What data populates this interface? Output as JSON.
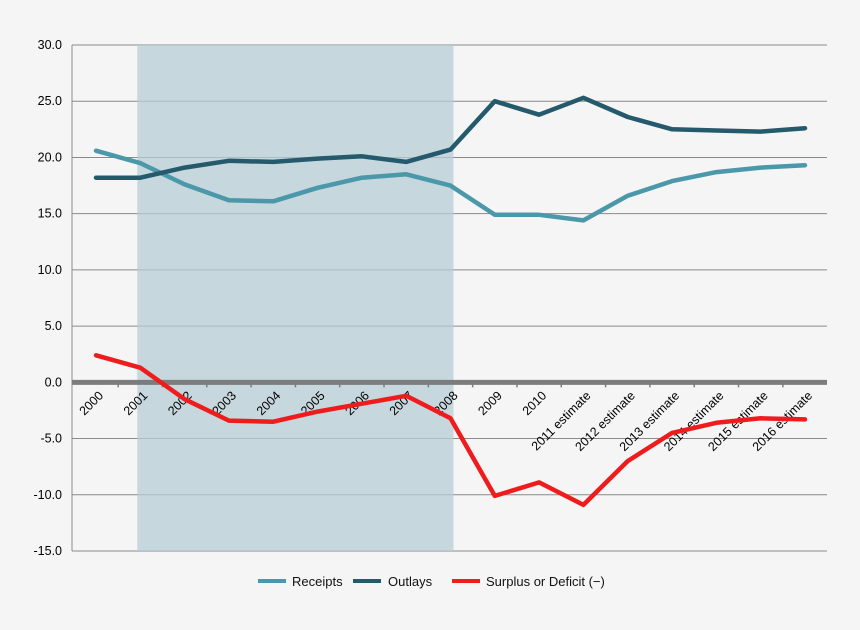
{
  "chart_data": {
    "type": "line",
    "title": "",
    "xlabel": "",
    "ylabel": "",
    "ylim": [
      -15,
      30
    ],
    "yticks": [
      "30.0",
      "25.0",
      "20.0",
      "15.0",
      "10.0",
      "5.0",
      "0.0",
      "-5.0",
      "-10.0",
      "-15.0"
    ],
    "ytick_values": [
      30,
      25,
      20,
      15,
      10,
      5,
      0,
      -5,
      -10,
      -15
    ],
    "categories": [
      "2000",
      "2001",
      "2002",
      "2003",
      "2004",
      "2005",
      "2006",
      "2007",
      "2008",
      "2009",
      "2010",
      "2011 estimate",
      "2012 estimate",
      "2013 estimate",
      "2014 estimate",
      "2015 estimate",
      "2016 estimate"
    ],
    "shaded_range": [
      "2001",
      "2008"
    ],
    "grid": true,
    "legend_position": "bottom",
    "series": [
      {
        "name": "Receipts",
        "color": "#4a98aa",
        "values": [
          20.6,
          19.5,
          17.6,
          16.2,
          16.1,
          17.3,
          18.2,
          18.5,
          17.5,
          14.9,
          14.9,
          14.4,
          16.6,
          17.9,
          18.7,
          19.1,
          19.3
        ]
      },
      {
        "name": "Outlays",
        "color": "#245a6b",
        "values": [
          18.2,
          18.2,
          19.1,
          19.7,
          19.6,
          19.9,
          20.1,
          19.6,
          20.7,
          25.0,
          23.8,
          25.3,
          23.6,
          22.5,
          22.4,
          22.3,
          22.6
        ]
      },
      {
        "name": "Surplus or Deficit (−)",
        "color": "#ee1c1c",
        "values": [
          2.4,
          1.3,
          -1.5,
          -3.4,
          -3.5,
          -2.6,
          -1.9,
          -1.2,
          -3.2,
          -10.1,
          -8.9,
          -10.9,
          -7.0,
          -4.5,
          -3.6,
          -3.2,
          -3.3
        ]
      }
    ]
  }
}
